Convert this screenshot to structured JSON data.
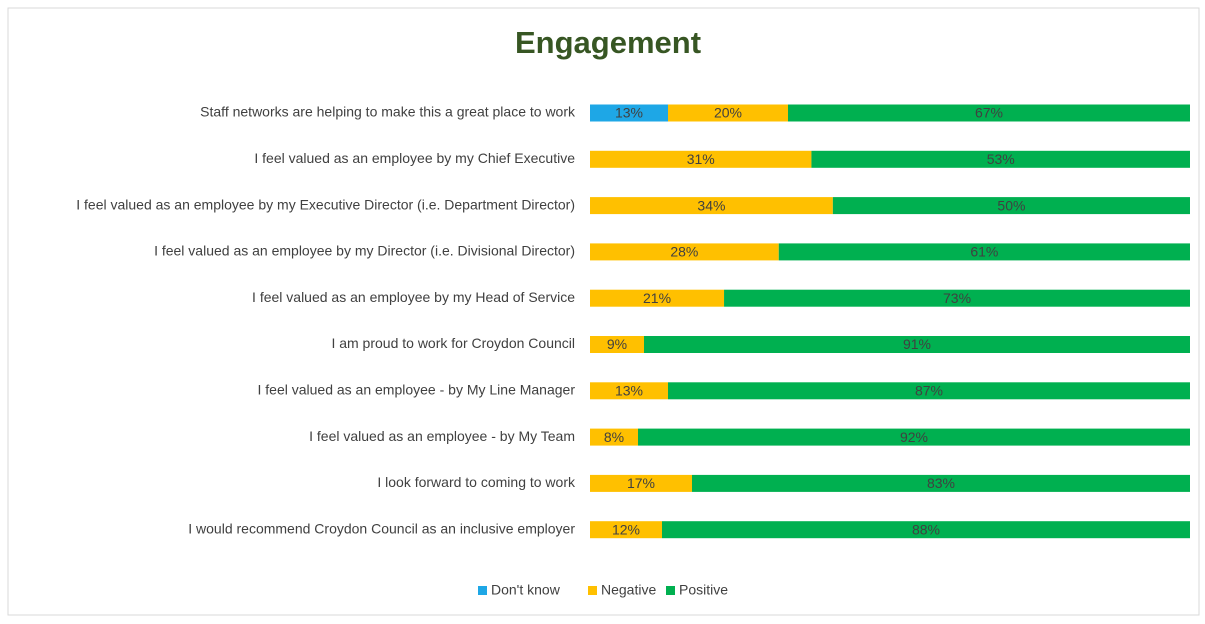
{
  "chart_data": {
    "type": "stacked_bar_100",
    "orientation": "horizontal",
    "title": "Engagement",
    "categories": [
      "Staff networks are helping to make this a great place to work",
      "I feel valued as an employee by my Chief Executive",
      "I feel valued as an employee by my Executive Director (i.e. Department Director)",
      "I feel valued as an employee by my Director (i.e. Divisional Director)",
      "I feel valued as an employee by my Head of Service",
      "I am proud to work for Croydon Council",
      "I feel valued as an employee - by My Line Manager",
      "I feel valued as an employee - by My Team",
      "I look forward to coming to work",
      "I would recommend Croydon Council as an inclusive employer"
    ],
    "series": [
      {
        "name": "Don't know",
        "color": "#1ea7e6",
        "values": [
          13,
          null,
          null,
          null,
          null,
          null,
          null,
          null,
          null,
          null
        ],
        "value_labels": [
          "13%",
          null,
          null,
          null,
          null,
          null,
          null,
          null,
          null,
          null
        ]
      },
      {
        "name": "Negative",
        "color": "#ffc000",
        "values": [
          20,
          31,
          34,
          28,
          21,
          9,
          13,
          8,
          17,
          12
        ],
        "value_labels": [
          "20%",
          "31%",
          "34%",
          "28%",
          "21%",
          "9%",
          "13%",
          "8%",
          "17%",
          "12%"
        ]
      },
      {
        "name": "Positive",
        "color": "#00b050",
        "values": [
          67,
          53,
          50,
          61,
          73,
          91,
          87,
          92,
          83,
          88
        ],
        "value_labels": [
          "67%",
          "53%",
          "50%",
          "61%",
          "73%",
          "91%",
          "87%",
          "92%",
          "83%",
          "88%"
        ]
      }
    ],
    "legend": "bottom"
  }
}
